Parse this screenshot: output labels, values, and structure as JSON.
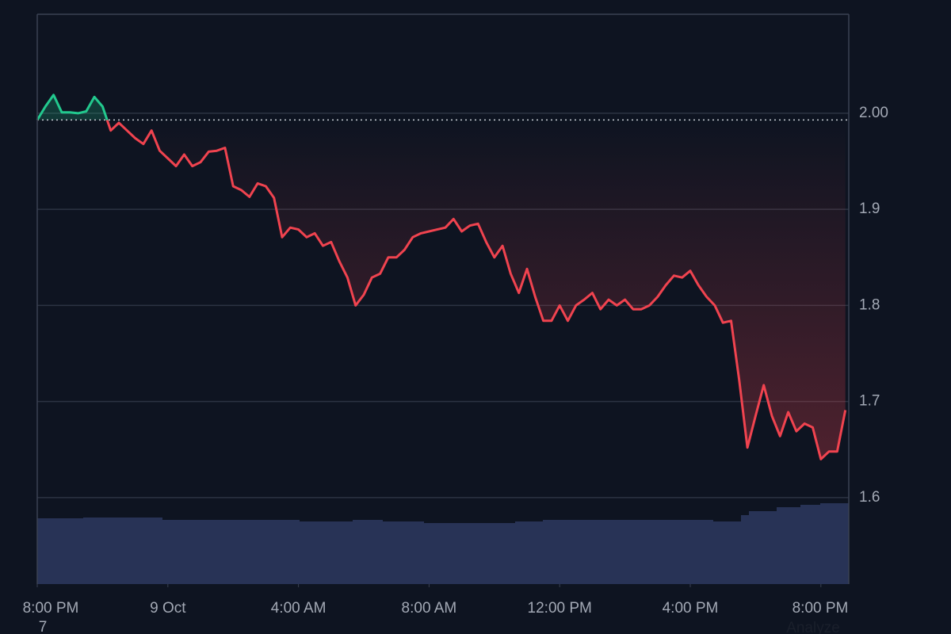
{
  "chart_data": {
    "type": "line",
    "x": [
      "8:00 PM",
      "8:15 PM",
      "8:30 PM",
      "8:45 PM",
      "9:00 PM",
      "9:15 PM",
      "9:30 PM",
      "9:45 PM",
      "10:00 PM",
      "10:15 PM",
      "10:30 PM",
      "10:45 PM",
      "11:00 PM",
      "11:15 PM",
      "11:30 PM",
      "11:45 PM",
      "12:00 AM",
      "12:15 AM",
      "12:30 AM",
      "12:45 AM",
      "1:00 AM",
      "1:15 AM",
      "1:30 AM",
      "1:45 AM",
      "2:00 AM",
      "2:15 AM",
      "2:30 AM",
      "2:45 AM",
      "3:00 AM",
      "3:15 AM",
      "3:30 AM",
      "3:45 AM",
      "4:00 AM",
      "4:15 AM",
      "4:30 AM",
      "4:45 AM",
      "5:00 AM",
      "5:15 AM",
      "5:30 AM",
      "5:45 AM",
      "6:00 AM",
      "6:15 AM",
      "6:30 AM",
      "6:45 AM",
      "7:00 AM",
      "7:15 AM",
      "7:30 AM",
      "7:45 AM",
      "8:00 AM",
      "8:15 AM",
      "8:30 AM",
      "8:45 AM",
      "9:00 AM",
      "9:15 AM",
      "9:30 AM",
      "9:45 AM",
      "10:00 AM",
      "10:15 AM",
      "10:30 AM",
      "10:45 AM",
      "11:00 AM",
      "11:15 AM",
      "11:30 AM",
      "11:45 AM",
      "12:00 PM",
      "12:15 PM",
      "12:30 PM",
      "12:45 PM",
      "1:00 PM",
      "1:15 PM",
      "1:30 PM",
      "1:45 PM",
      "2:00 PM",
      "2:15 PM",
      "2:30 PM",
      "2:45 PM",
      "3:00 PM",
      "3:15 PM",
      "3:30 PM",
      "3:45 PM",
      "4:00 PM",
      "4:15 PM",
      "4:30 PM",
      "4:45 PM",
      "5:00 PM",
      "5:15 PM",
      "5:30 PM",
      "5:45 PM",
      "6:00 PM",
      "6:15 PM",
      "6:30 PM",
      "6:45 PM",
      "7:00 PM",
      "7:15 PM",
      "7:30 PM",
      "7:45 PM",
      "8:00 PM",
      "8:15 PM",
      "8:30 PM",
      "8:45 PM"
    ],
    "series": [
      {
        "values": [
          1.993,
          2.007,
          2.019,
          2.001,
          2.001,
          2.0,
          2.002,
          2.017,
          2.007,
          1.982,
          1.99,
          1.982,
          1.974,
          1.968,
          1.982,
          1.961,
          1.953,
          1.945,
          1.957,
          1.945,
          1.949,
          1.96,
          1.961,
          1.964,
          1.924,
          1.92,
          1.913,
          1.927,
          1.924,
          1.912,
          1.871,
          1.881,
          1.879,
          1.871,
          1.875,
          1.862,
          1.866,
          1.846,
          1.829,
          1.8,
          1.811,
          1.829,
          1.833,
          1.85,
          1.85,
          1.858,
          1.871,
          1.875,
          1.877,
          1.879,
          1.881,
          1.89,
          1.877,
          1.883,
          1.885,
          1.866,
          1.85,
          1.862,
          1.833,
          1.813,
          1.838,
          1.809,
          1.784,
          1.784,
          1.8,
          1.784,
          1.8,
          1.806,
          1.813,
          1.796,
          1.806,
          1.8,
          1.806,
          1.796,
          1.796,
          1.8,
          1.809,
          1.821,
          1.831,
          1.829,
          1.836,
          1.821,
          1.809,
          1.8,
          1.782,
          1.784,
          1.722,
          1.652,
          1.685,
          1.717,
          1.685,
          1.664,
          1.689,
          1.669,
          1.677,
          1.673,
          1.64,
          1.648,
          1.648,
          1.691
        ]
      }
    ],
    "baseline": 1.993,
    "up_color": "#22c98e",
    "down_color": "#f0434f",
    "ylim": [
      1.51,
      2.103
    ],
    "yticks": [
      {
        "value": 2.0,
        "label": "2.00"
      },
      1.9,
      1.8,
      1.7,
      1.6
    ],
    "xticks": [
      {
        "value": 0,
        "label": "8:00 PM"
      },
      {
        "value": 16,
        "label": "9 Oct"
      },
      {
        "value": 32,
        "label": "4:00 AM"
      },
      {
        "value": 48,
        "label": "8:00 AM"
      },
      {
        "value": 64,
        "label": "12:00 PM"
      },
      {
        "value": 80,
        "label": "4:00 PM"
      },
      {
        "value": 96,
        "label": "8:00 PM"
      }
    ],
    "grid": true,
    "footer_labels": [
      "7",
      "Analyze"
    ]
  }
}
